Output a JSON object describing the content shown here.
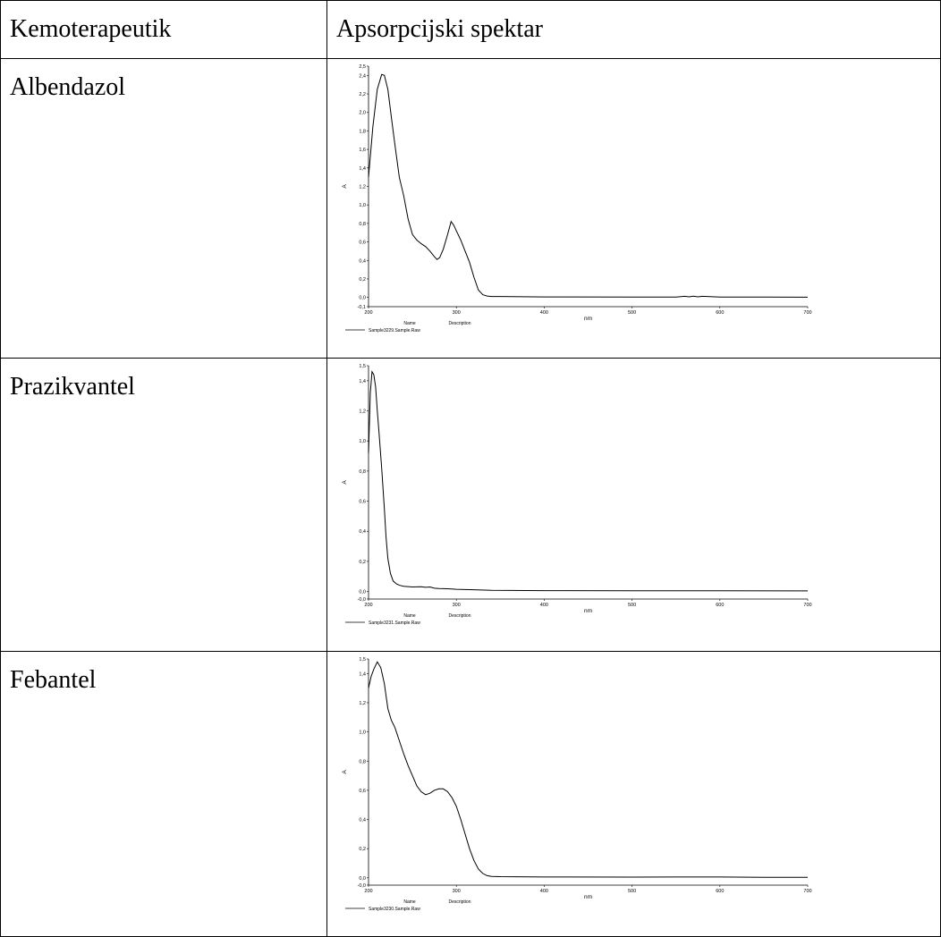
{
  "table": {
    "headers": [
      "Kemoterapeutik",
      "Apsorpcijski spektar"
    ],
    "rows": [
      {
        "name": "Albendazol"
      },
      {
        "name": "Prazikvantel"
      },
      {
        "name": "Febantel"
      }
    ]
  },
  "chart_data": [
    {
      "type": "line",
      "xlabel": "nm",
      "ylabel": "A",
      "xlim": [
        200,
        700
      ],
      "ylim": [
        -0.1,
        2.5
      ],
      "x_ticks": [
        200,
        300,
        400,
        500,
        600,
        700
      ],
      "y_ticks": [
        {
          "v": -0.1,
          "label": "-0,1"
        },
        {
          "v": 0,
          "label": "0,0"
        },
        {
          "v": 0.2,
          "label": "0,2"
        },
        {
          "v": 0.4,
          "label": "0,4"
        },
        {
          "v": 0.6,
          "label": "0,6"
        },
        {
          "v": 0.8,
          "label": "0,8"
        },
        {
          "v": 1.0,
          "label": "1,0"
        },
        {
          "v": 1.2,
          "label": "1,2"
        },
        {
          "v": 1.4,
          "label": "1,4"
        },
        {
          "v": 1.6,
          "label": "1,6"
        },
        {
          "v": 1.8,
          "label": "1,8"
        },
        {
          "v": 2.0,
          "label": "2,0"
        },
        {
          "v": 2.2,
          "label": "2,2"
        },
        {
          "v": 2.4,
          "label": "2,4"
        },
        {
          "v": 2.5,
          "label": "2,5"
        }
      ],
      "legend": {
        "name_header": "Name",
        "description_header": "Description",
        "entry": "Sample3229.Sample.Raw"
      },
      "series": [
        {
          "x": [
            200,
            205,
            210,
            215,
            218,
            222,
            226,
            230,
            235,
            240,
            245,
            250,
            255,
            260,
            265,
            270,
            275,
            278,
            281,
            285,
            290,
            294,
            297,
            300,
            305,
            310,
            315,
            320,
            325,
            330,
            335,
            340,
            350,
            400,
            500,
            550,
            560,
            565,
            570,
            575,
            580,
            600,
            650,
            700
          ],
          "y": [
            1.3,
            1.85,
            2.25,
            2.41,
            2.4,
            2.25,
            1.95,
            1.65,
            1.3,
            1.1,
            0.85,
            0.68,
            0.62,
            0.58,
            0.55,
            0.5,
            0.44,
            0.41,
            0.43,
            0.52,
            0.68,
            0.82,
            0.78,
            0.72,
            0.62,
            0.5,
            0.38,
            0.22,
            0.08,
            0.03,
            0.015,
            0.01,
            0.01,
            0.005,
            0.004,
            0.004,
            0.012,
            0.006,
            0.014,
            0.006,
            0.012,
            0.004,
            0.003,
            0.002
          ]
        }
      ]
    },
    {
      "type": "line",
      "xlabel": "nm",
      "ylabel": "A",
      "xlim": [
        200,
        700
      ],
      "ylim": [
        -0.05,
        1.5
      ],
      "x_ticks": [
        200,
        300,
        400,
        500,
        600,
        700
      ],
      "y_ticks": [
        {
          "v": -0.05,
          "label": "-0,0"
        },
        {
          "v": 0,
          "label": "0,0"
        },
        {
          "v": 0.2,
          "label": "0,2"
        },
        {
          "v": 0.4,
          "label": "0,4"
        },
        {
          "v": 0.6,
          "label": "0,6"
        },
        {
          "v": 0.8,
          "label": "0,8"
        },
        {
          "v": 1.0,
          "label": "1,0"
        },
        {
          "v": 1.2,
          "label": "1,2"
        },
        {
          "v": 1.4,
          "label": "1,4"
        },
        {
          "v": 1.5,
          "label": "1,5"
        }
      ],
      "legend": {
        "name_header": "Name",
        "description_header": "Description",
        "entry": "Sample3231.Sample.Raw"
      },
      "series": [
        {
          "x": [
            200,
            202,
            204,
            206,
            208,
            210,
            212,
            215,
            218,
            220,
            222,
            225,
            228,
            232,
            236,
            240,
            250,
            260,
            265,
            270,
            275,
            280,
            290,
            300,
            320,
            340,
            400,
            500,
            600,
            700
          ],
          "y": [
            0.92,
            1.32,
            1.46,
            1.44,
            1.36,
            1.2,
            1.05,
            0.82,
            0.55,
            0.36,
            0.22,
            0.12,
            0.07,
            0.05,
            0.04,
            0.035,
            0.03,
            0.032,
            0.028,
            0.03,
            0.022,
            0.02,
            0.018,
            0.015,
            0.012,
            0.008,
            0.006,
            0.005,
            0.005,
            0.004
          ]
        }
      ]
    },
    {
      "type": "line",
      "xlabel": "nm",
      "ylabel": "A",
      "xlim": [
        200,
        700
      ],
      "ylim": [
        -0.05,
        1.5
      ],
      "x_ticks": [
        200,
        300,
        400,
        500,
        600,
        700
      ],
      "y_ticks": [
        {
          "v": -0.05,
          "label": "-0,0"
        },
        {
          "v": 0,
          "label": "0,0"
        },
        {
          "v": 0.2,
          "label": "0,2"
        },
        {
          "v": 0.4,
          "label": "0,4"
        },
        {
          "v": 0.6,
          "label": "0,6"
        },
        {
          "v": 0.8,
          "label": "0,8"
        },
        {
          "v": 1.0,
          "label": "1,0"
        },
        {
          "v": 1.2,
          "label": "1,2"
        },
        {
          "v": 1.4,
          "label": "1,4"
        },
        {
          "v": 1.5,
          "label": "1,5"
        }
      ],
      "legend": {
        "name_header": "Name",
        "description_header": "Description",
        "entry": "Sample3230.Sample.Raw"
      },
      "series": [
        {
          "x": [
            200,
            203,
            206,
            210,
            214,
            218,
            222,
            226,
            230,
            235,
            240,
            245,
            250,
            255,
            260,
            265,
            270,
            275,
            280,
            285,
            290,
            295,
            300,
            305,
            310,
            315,
            320,
            325,
            330,
            335,
            340,
            350,
            400,
            500,
            550,
            600,
            650,
            700
          ],
          "y": [
            1.3,
            1.38,
            1.43,
            1.48,
            1.44,
            1.33,
            1.16,
            1.08,
            1.03,
            0.94,
            0.85,
            0.77,
            0.7,
            0.63,
            0.59,
            0.57,
            0.58,
            0.6,
            0.61,
            0.61,
            0.59,
            0.55,
            0.49,
            0.4,
            0.3,
            0.2,
            0.12,
            0.06,
            0.03,
            0.015,
            0.01,
            0.008,
            0.006,
            0.005,
            0.006,
            0.006,
            0.004,
            0.003
          ]
        }
      ]
    }
  ]
}
